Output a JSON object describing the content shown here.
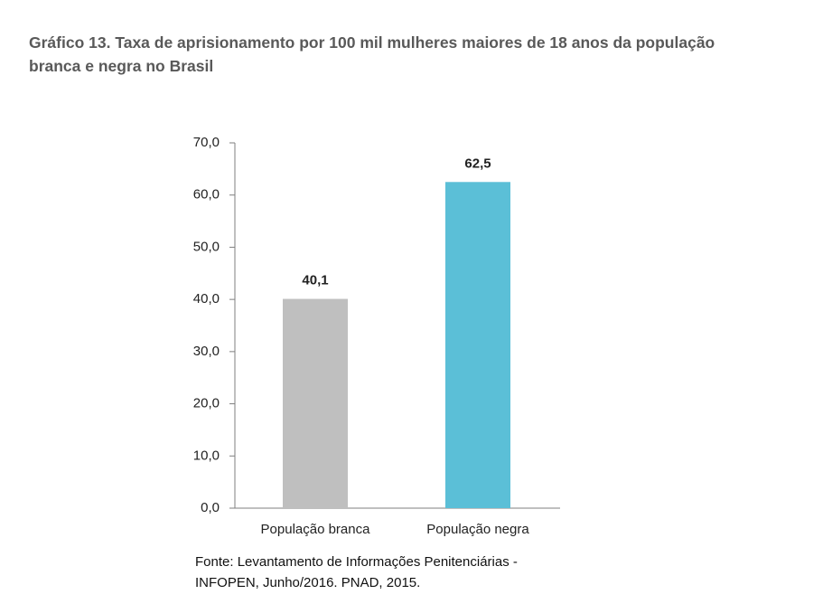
{
  "chart_data": {
    "type": "bar",
    "title": "Gráfico 13. Taxa de aprisionamento por 100 mil mulheres maiores de 18 anos da população branca e negra no Brasil",
    "categories": [
      "População branca",
      "População negra"
    ],
    "values": [
      40.1,
      62.5
    ],
    "value_labels": [
      "40,1",
      "62,5"
    ],
    "colors": [
      "#bfbfbf",
      "#5bbfd7"
    ],
    "ylim": [
      0,
      70
    ],
    "yticks": [
      {
        "value": 0,
        "label": "0,0"
      },
      {
        "value": 10,
        "label": "10,0"
      },
      {
        "value": 20,
        "label": "20,0"
      },
      {
        "value": 30,
        "label": "30,0"
      },
      {
        "value": 40,
        "label": "40,0"
      },
      {
        "value": 50,
        "label": "50,0"
      },
      {
        "value": 60,
        "label": "60,0"
      },
      {
        "value": 70,
        "label": "70,0"
      }
    ],
    "grid": false,
    "source": "Fonte: Levantamento de Informações Penitenciárias - INFOPEN, Junho/2016. PNAD, 2015."
  }
}
